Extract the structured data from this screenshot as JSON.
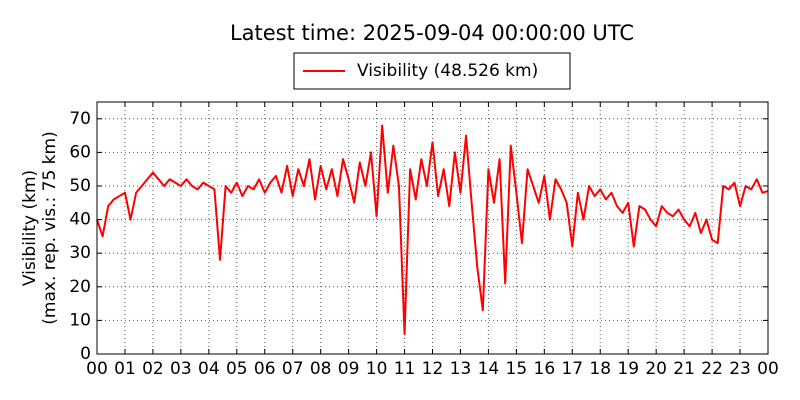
{
  "chart_data": {
    "type": "line",
    "title": "Latest time: 2025-09-04 00:00:00 UTC",
    "y_label": [
      "Visibility (km)",
      "(max. rep. vis.: 75 km)"
    ],
    "x": [
      0,
      0.2,
      0.4,
      0.6,
      0.8,
      1,
      1.2,
      1.4,
      1.6,
      1.8,
      2,
      2.2,
      2.4,
      2.6,
      2.8,
      3,
      3.2,
      3.4,
      3.6,
      3.8,
      4,
      4.2,
      4.4,
      4.6,
      4.8,
      5,
      5.2,
      5.4,
      5.6,
      5.8,
      6,
      6.2,
      6.4,
      6.6,
      6.8,
      7,
      7.2,
      7.4,
      7.6,
      7.8,
      8,
      8.2,
      8.4,
      8.6,
      8.8,
      9,
      9.2,
      9.4,
      9.6,
      9.8,
      10,
      10.2,
      10.4,
      10.6,
      10.8,
      11,
      11.2,
      11.4,
      11.6,
      11.8,
      12,
      12.2,
      12.4,
      12.6,
      12.8,
      13,
      13.2,
      13.4,
      13.6,
      13.8,
      14,
      14.2,
      14.4,
      14.6,
      14.8,
      15,
      15.2,
      15.4,
      15.6,
      15.8,
      16,
      16.2,
      16.4,
      16.6,
      16.8,
      17,
      17.2,
      17.4,
      17.6,
      17.8,
      18,
      18.2,
      18.4,
      18.6,
      18.8,
      19,
      19.2,
      19.4,
      19.6,
      19.8,
      20,
      20.2,
      20.4,
      20.6,
      20.8,
      21,
      21.2,
      21.4,
      21.6,
      21.8,
      22,
      22.2,
      22.4,
      22.6,
      22.8,
      23,
      23.2,
      23.4,
      23.6,
      23.8,
      24
    ],
    "series": [
      {
        "name": "Visibility (48.526 km)",
        "color": "#ff0000",
        "values": [
          40,
          35,
          44,
          46,
          47,
          48,
          40,
          48,
          50,
          52,
          54,
          52,
          50,
          52,
          51,
          50,
          52,
          50,
          49,
          51,
          50,
          49,
          28,
          50,
          48,
          51,
          47,
          50,
          49,
          52,
          48,
          51,
          53,
          48,
          56,
          47,
          55,
          50,
          58,
          46,
          56,
          49,
          55,
          47,
          58,
          52,
          45,
          57,
          50,
          60,
          41,
          68,
          48,
          62,
          50,
          6,
          55,
          46,
          58,
          50,
          63,
          47,
          55,
          44,
          60,
          48,
          65,
          45,
          26,
          13,
          55,
          45,
          58,
          21,
          62,
          48,
          33,
          55,
          50,
          45,
          53,
          40,
          52,
          49,
          45,
          32,
          48,
          40,
          50,
          47,
          49,
          46,
          48,
          44,
          42,
          45,
          32,
          44,
          43,
          40,
          38,
          44,
          42,
          41,
          43,
          40,
          38,
          42,
          36,
          40,
          34,
          33,
          50,
          49,
          51,
          44,
          50,
          49,
          52,
          48,
          48.5
        ]
      }
    ],
    "xlim": [
      0,
      24
    ],
    "xticks": [
      {
        "value": 0,
        "label": "00"
      },
      {
        "value": 1,
        "label": "01"
      },
      {
        "value": 2,
        "label": "02"
      },
      {
        "value": 3,
        "label": "03"
      },
      {
        "value": 4,
        "label": "04"
      },
      {
        "value": 5,
        "label": "05"
      },
      {
        "value": 6,
        "label": "06"
      },
      {
        "value": 7,
        "label": "07"
      },
      {
        "value": 8,
        "label": "08"
      },
      {
        "value": 9,
        "label": "09"
      },
      {
        "value": 10,
        "label": "10"
      },
      {
        "value": 11,
        "label": "11"
      },
      {
        "value": 12,
        "label": "12"
      },
      {
        "value": 13,
        "label": "13"
      },
      {
        "value": 14,
        "label": "14"
      },
      {
        "value": 15,
        "label": "15"
      },
      {
        "value": 16,
        "label": "16"
      },
      {
        "value": 17,
        "label": "17"
      },
      {
        "value": 18,
        "label": "18"
      },
      {
        "value": 19,
        "label": "19"
      },
      {
        "value": 20,
        "label": "20"
      },
      {
        "value": 21,
        "label": "21"
      },
      {
        "value": 22,
        "label": "22"
      },
      {
        "value": 23,
        "label": "23"
      },
      {
        "value": 24,
        "label": "00"
      }
    ],
    "ylim": [
      0,
      75
    ],
    "yticks": [
      0,
      10,
      20,
      30,
      40,
      50,
      60,
      70
    ],
    "grid": true,
    "legend": "top"
  }
}
